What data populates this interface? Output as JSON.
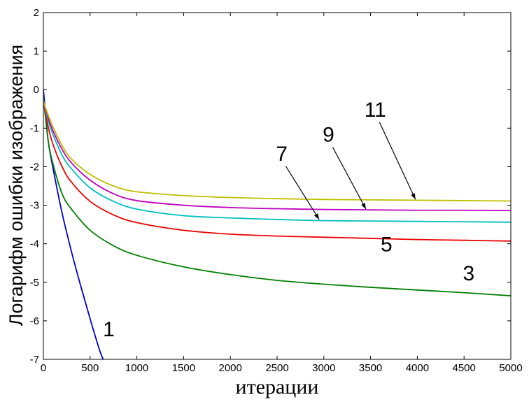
{
  "chart_data": {
    "type": "line",
    "title": "",
    "xlabel": "итерации",
    "ylabel": "Логарифм ошибки изображения",
    "xlim": [
      0,
      5000
    ],
    "ylim": [
      -7,
      2
    ],
    "xticks": [
      0,
      500,
      1000,
      1500,
      2000,
      2500,
      3000,
      3500,
      4000,
      4500,
      5000
    ],
    "yticks": [
      2,
      1,
      0,
      -1,
      -2,
      -3,
      -4,
      -5,
      -6,
      -7
    ],
    "grid": false,
    "legend": "none",
    "series": [
      {
        "color": "#0000cc",
        "label": "1",
        "x": [
          0,
          50,
          100,
          200,
          300,
          400,
          500,
          600,
          640
        ],
        "y": [
          0.0,
          -1.3,
          -2.0,
          -3.2,
          -4.2,
          -5.1,
          -5.95,
          -6.75,
          -7.0
        ]
      },
      {
        "color": "#007f00",
        "label": "3",
        "x": [
          0,
          50,
          100,
          200,
          300,
          500,
          750,
          1000,
          1500,
          2000,
          2500,
          3000,
          3500,
          4000,
          4500,
          5000
        ],
        "y": [
          -0.2,
          -1.3,
          -1.9,
          -2.7,
          -3.1,
          -3.65,
          -4.05,
          -4.3,
          -4.6,
          -4.8,
          -4.95,
          -5.05,
          -5.13,
          -5.2,
          -5.27,
          -5.35
        ]
      },
      {
        "color": "#ee0000",
        "label": "5",
        "x": [
          0,
          50,
          100,
          200,
          300,
          500,
          750,
          1000,
          1500,
          2000,
          2500,
          3000,
          3500,
          4000,
          4500,
          5000
        ],
        "y": [
          -0.3,
          -0.95,
          -1.4,
          -2.0,
          -2.4,
          -2.9,
          -3.25,
          -3.45,
          -3.65,
          -3.75,
          -3.8,
          -3.83,
          -3.86,
          -3.89,
          -3.91,
          -3.93
        ]
      },
      {
        "color": "#00bfbf",
        "label": "7",
        "x": [
          0,
          50,
          100,
          200,
          300,
          500,
          750,
          1000,
          1500,
          2000,
          2500,
          3000,
          3500,
          4000,
          4500,
          5000
        ],
        "y": [
          -0.3,
          -0.8,
          -1.15,
          -1.7,
          -2.05,
          -2.55,
          -2.9,
          -3.1,
          -3.27,
          -3.33,
          -3.37,
          -3.4,
          -3.41,
          -3.42,
          -3.43,
          -3.44
        ]
      },
      {
        "color": "#bf00bf",
        "label": "9",
        "x": [
          0,
          50,
          100,
          200,
          300,
          500,
          750,
          1000,
          1500,
          2000,
          2500,
          3000,
          3500,
          4000,
          4500,
          5000
        ],
        "y": [
          -0.3,
          -0.72,
          -1.05,
          -1.55,
          -1.9,
          -2.35,
          -2.7,
          -2.88,
          -3.0,
          -3.06,
          -3.09,
          -3.11,
          -3.12,
          -3.13,
          -3.13,
          -3.14
        ]
      },
      {
        "color": "#bfbf00",
        "label": "11",
        "x": [
          0,
          50,
          100,
          200,
          300,
          500,
          750,
          1000,
          1500,
          2000,
          2500,
          3000,
          3500,
          4000,
          4500,
          5000
        ],
        "y": [
          -0.3,
          -0.65,
          -0.95,
          -1.45,
          -1.8,
          -2.2,
          -2.5,
          -2.65,
          -2.75,
          -2.8,
          -2.83,
          -2.85,
          -2.86,
          -2.87,
          -2.88,
          -2.89
        ]
      }
    ],
    "annotations": [
      {
        "text": "1",
        "x": 700,
        "y": -6.4,
        "arrow": false
      },
      {
        "text": "3",
        "x": 4550,
        "y": -4.95,
        "arrow": false
      },
      {
        "text": "5",
        "x": 3670,
        "y": -4.2,
        "arrow": false
      },
      {
        "text": "7",
        "x": 2550,
        "y": -1.85,
        "arrow": true,
        "arrow_to_x": 2950,
        "arrow_to_y": -3.37
      },
      {
        "text": "9",
        "x": 3050,
        "y": -1.35,
        "arrow": true,
        "arrow_to_x": 3450,
        "arrow_to_y": -3.1
      },
      {
        "text": "11",
        "x": 3550,
        "y": -0.7,
        "arrow": true,
        "arrow_to_x": 3980,
        "arrow_to_y": -2.85
      }
    ]
  }
}
